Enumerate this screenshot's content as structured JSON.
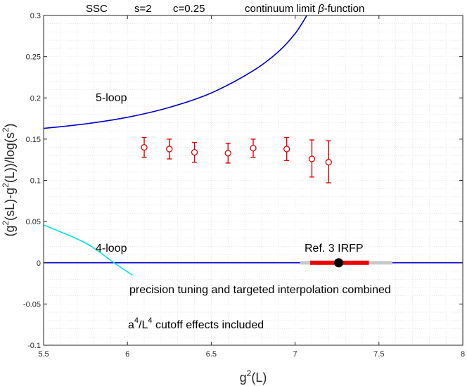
{
  "chart_data": {
    "type": "scatter",
    "title_parts": {
      "prefix": "SSC",
      "s": "s=2",
      "c": "c=0.25",
      "label_pre": "continuum limit",
      "beta": "β",
      "label_post": "-function"
    },
    "xlabel": {
      "base": "g",
      "sup": "2",
      "rest": "(L)"
    },
    "ylabel": {
      "p1": "(g",
      "s1": "2",
      "p2": "(sL)-g",
      "s2": "2",
      "p3": "(L))/log(s",
      "s3": "2",
      "p4": ")"
    },
    "xlim": [
      5.5,
      8
    ],
    "ylim": [
      -0.1,
      0.3
    ],
    "xticks": [
      5.5,
      6,
      6.5,
      7,
      7.5,
      8
    ],
    "yticks": [
      -0.1,
      -0.05,
      0,
      0.05,
      0.1,
      0.15,
      0.2,
      0.25,
      0.3
    ],
    "xtick_labels": [
      "5.5",
      "6",
      "6.5",
      "7",
      "7.5",
      "8"
    ],
    "ytick_labels": [
      "-0.1",
      "-0.05",
      "0",
      "0.05",
      "0.1",
      "0.15",
      "0.2",
      "0.25",
      "0.3"
    ],
    "grid": true,
    "series": [
      {
        "name": "data",
        "color": "#e00000",
        "x": [
          6.1,
          6.25,
          6.4,
          6.6,
          6.75,
          6.95,
          7.1,
          7.2
        ],
        "y": [
          0.14,
          0.138,
          0.134,
          0.133,
          0.139,
          0.138,
          0.126,
          0.122
        ],
        "err_low": [
          0.012,
          0.012,
          0.012,
          0.012,
          0.011,
          0.014,
          0.022,
          0.025
        ],
        "err_high": [
          0.012,
          0.012,
          0.012,
          0.012,
          0.011,
          0.014,
          0.023,
          0.026
        ]
      }
    ],
    "curves": {
      "five_loop": {
        "label": "5-loop",
        "color": "#0000c8",
        "x": [
          5.5,
          5.75,
          6.0,
          6.25,
          6.5,
          6.75,
          6.9,
          7.0,
          7.07
        ],
        "y": [
          0.163,
          0.1685,
          0.1765,
          0.1885,
          0.206,
          0.233,
          0.256,
          0.278,
          0.3
        ]
      },
      "four_loop": {
        "label": "4-loop",
        "color": "#00e5e5",
        "x": [
          5.5,
          5.75,
          5.92,
          6.03
        ],
        "y": [
          0.046,
          0.024,
          0.0,
          -0.015
        ]
      },
      "zero_line": {
        "color": "#0000c8",
        "y": 0
      }
    },
    "irfp": {
      "label": "Ref. 3  IRFP",
      "center": 7.26,
      "red_range": [
        7.09,
        7.44
      ],
      "gray_range": [
        7.03,
        7.58
      ],
      "center_color": "#000000",
      "red_color": "#ee0000",
      "gray_color": "#c8c8c8"
    },
    "annotations": {
      "precision": "precision tuning and targeted interpolation combined",
      "cutoff_a": "a",
      "cutoff_sup1": "4",
      "cutoff_mid": "/L",
      "cutoff_sup2": "4",
      "cutoff_rest": " cutoff effects included"
    }
  }
}
